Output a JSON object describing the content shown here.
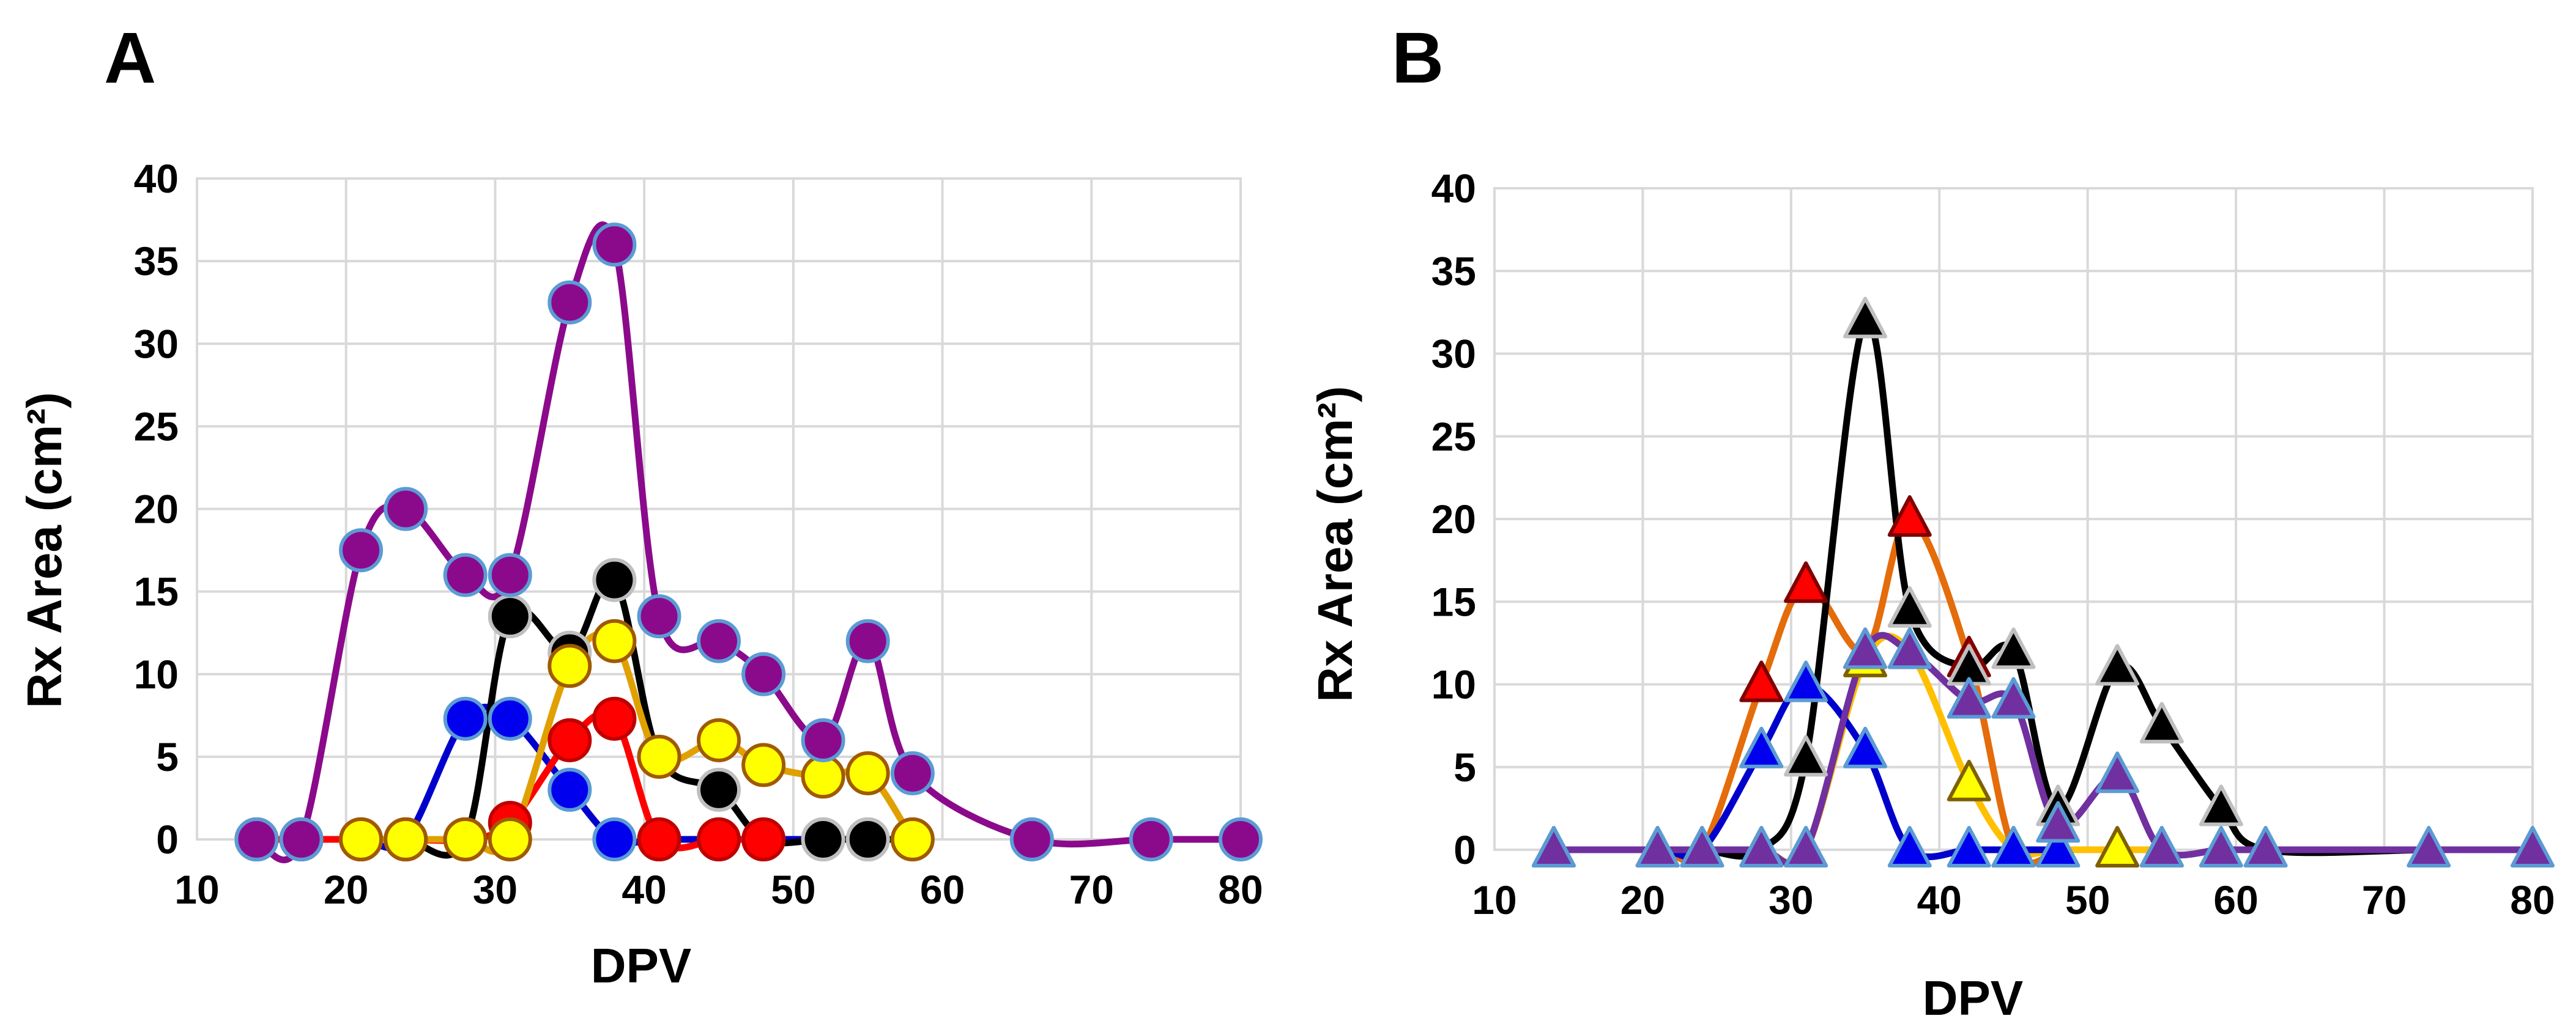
{
  "chart_data": [
    {
      "type": "line",
      "panel": "A",
      "xlabel": "DPV",
      "ylabel": "Rx  Area (cm²)",
      "xlim": [
        10,
        80
      ],
      "ylim": [
        0,
        40
      ],
      "xticks": [
        "10",
        "20",
        "30",
        "40",
        "50",
        "60",
        "70",
        "80"
      ],
      "yticks": [
        "0",
        "5",
        "10",
        "15",
        "20",
        "25",
        "30",
        "35",
        "40"
      ],
      "grid": true,
      "marker": "circle",
      "series": [
        {
          "name": "blue",
          "line": "#0000cc",
          "fill": "#0000ee",
          "edge": "#5b9bd5",
          "x": [
            14,
            17,
            21,
            24,
            28,
            31,
            35,
            38,
            41,
            45,
            48,
            52,
            55
          ],
          "y": [
            0,
            0,
            0,
            0,
            7.3,
            7.3,
            3,
            0,
            0,
            0,
            0,
            0,
            0
          ]
        },
        {
          "name": "black",
          "line": "#000000",
          "fill": "#000000",
          "edge": "#bfbfbf",
          "x": [
            14,
            17,
            21,
            24,
            28,
            31,
            35,
            38,
            41,
            45,
            48,
            52,
            55,
            58
          ],
          "y": [
            0,
            0,
            0,
            0,
            0,
            13.5,
            11.3,
            15.7,
            5,
            3,
            0,
            0,
            0,
            0
          ]
        },
        {
          "name": "red",
          "line": "#ff0000",
          "fill": "#ff0000",
          "edge": "#c00000",
          "x": [
            14,
            17,
            21,
            24,
            28,
            31,
            35,
            38,
            41,
            45,
            48
          ],
          "y": [
            0,
            0,
            0,
            0,
            0,
            1,
            6,
            7.3,
            0,
            0,
            0
          ]
        },
        {
          "name": "yellow",
          "line": "#e0a000",
          "fill": "#ffff00",
          "edge": "#a05a00",
          "x": [
            21,
            24,
            28,
            31,
            35,
            38,
            41,
            45,
            48,
            52,
            55,
            58
          ],
          "y": [
            0,
            0,
            0,
            0,
            10.5,
            12,
            5,
            6,
            4.5,
            3.8,
            4,
            0
          ]
        },
        {
          "name": "purple",
          "line": "#8b0a8b",
          "fill": "#8b0a8b",
          "edge": "#5b9bd5",
          "x": [
            14,
            17,
            21,
            24,
            28,
            31,
            35,
            38,
            41,
            45,
            48,
            52,
            55,
            58,
            66,
            74,
            80
          ],
          "y": [
            0,
            0,
            17.5,
            20,
            16,
            16,
            32.5,
            36,
            13.5,
            12,
            10,
            6,
            12,
            4,
            0,
            0,
            0
          ]
        }
      ]
    },
    {
      "type": "line",
      "panel": "B",
      "xlabel": "DPV",
      "ylabel": "Rx Area (cm²)",
      "xlim": [
        10,
        80
      ],
      "ylim": [
        0,
        40
      ],
      "xticks": [
        "10",
        "20",
        "30",
        "40",
        "50",
        "60",
        "70",
        "80"
      ],
      "yticks": [
        "0",
        "5",
        "10",
        "15",
        "20",
        "25",
        "30",
        "35",
        "40"
      ],
      "grid": true,
      "marker": "triangle",
      "series": [
        {
          "name": "red",
          "line": "#e46c0a",
          "fill": "#ff0000",
          "edge": "#7f0000",
          "x": [
            14,
            21,
            24,
            28,
            31,
            35,
            38,
            42,
            45,
            48
          ],
          "y": [
            0,
            0,
            0,
            10,
            16,
            12,
            20,
            11.5,
            0,
            0
          ]
        },
        {
          "name": "yellow",
          "line": "#ffc000",
          "fill": "#ffff00",
          "edge": "#7f6000",
          "x": [
            14,
            21,
            24,
            28,
            31,
            35,
            38,
            42,
            45,
            48,
            52,
            55
          ],
          "y": [
            0,
            0,
            0,
            0,
            0,
            11.5,
            12,
            4,
            0,
            0,
            0,
            0
          ]
        },
        {
          "name": "blue",
          "line": "#0000cc",
          "fill": "#0000ee",
          "edge": "#5b9bd5",
          "x": [
            14,
            21,
            24,
            28,
            31,
            35,
            38,
            42,
            45,
            48
          ],
          "y": [
            0,
            0,
            0,
            6,
            10,
            6,
            0,
            0,
            0,
            0
          ]
        },
        {
          "name": "black",
          "line": "#000000",
          "fill": "#000000",
          "edge": "#bfbfbf",
          "x": [
            14,
            21,
            24,
            28,
            31,
            35,
            38,
            42,
            45,
            48,
            52,
            55,
            59,
            62,
            73,
            80
          ],
          "y": [
            0,
            0,
            0,
            0,
            5.5,
            32,
            14.5,
            11,
            12,
            2.5,
            11,
            7.5,
            2.5,
            0,
            0,
            0
          ]
        },
        {
          "name": "purple",
          "line": "#7030a0",
          "fill": "#7030a0",
          "edge": "#5b9bd5",
          "x": [
            14,
            21,
            24,
            28,
            31,
            35,
            38,
            42,
            45,
            48,
            52,
            55,
            59,
            62,
            73,
            80
          ],
          "y": [
            0,
            0,
            0,
            0,
            0,
            12,
            12,
            9,
            9,
            1.5,
            4.5,
            0,
            0,
            0,
            0,
            0
          ]
        }
      ]
    }
  ]
}
